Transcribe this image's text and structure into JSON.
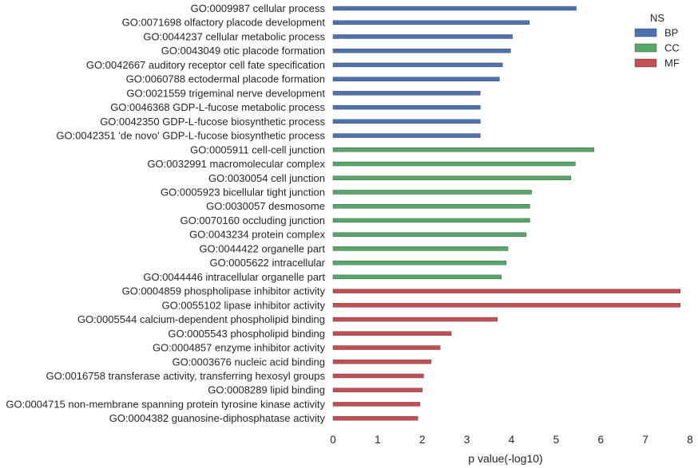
{
  "chart_data": {
    "type": "bar",
    "orientation": "horizontal",
    "xlabel": "p value(-log10)",
    "ylabel": "",
    "xlim": [
      0,
      8
    ],
    "xticks": [
      "0",
      "1",
      "2",
      "3",
      "4",
      "5",
      "6",
      "7",
      "8"
    ],
    "grid": false,
    "legend": {
      "title": "NS",
      "placement": "top-right",
      "entries": [
        {
          "name": "BP",
          "color": "#4c72b0"
        },
        {
          "name": "CC",
          "color": "#55a868"
        },
        {
          "name": "MF",
          "color": "#c44e52"
        }
      ]
    },
    "bars": [
      {
        "label": "GO:0009987 cellular process",
        "value": 5.45,
        "ns": "BP"
      },
      {
        "label": "GO:0071698 olfactory placode development",
        "value": 4.4,
        "ns": "BP"
      },
      {
        "label": "GO:0044237 cellular metabolic process",
        "value": 4.02,
        "ns": "BP"
      },
      {
        "label": "GO:0043049 otic placode formation",
        "value": 3.98,
        "ns": "BP"
      },
      {
        "label": "GO:0042667 auditory receptor cell fate specification",
        "value": 3.8,
        "ns": "BP"
      },
      {
        "label": "GO:0060788 ectodermal placode formation",
        "value": 3.73,
        "ns": "BP"
      },
      {
        "label": "GO:0021559 trigeminal nerve development",
        "value": 3.3,
        "ns": "BP"
      },
      {
        "label": "GO:0046368 GDP-L-fucose metabolic process",
        "value": 3.3,
        "ns": "BP"
      },
      {
        "label": "GO:0042350 GDP-L-fucose biosynthetic process",
        "value": 3.3,
        "ns": "BP"
      },
      {
        "label": "GO:0042351 'de novo' GDP-L-fucose biosynthetic process",
        "value": 3.3,
        "ns": "BP"
      },
      {
        "label": "GO:0005911 cell-cell junction",
        "value": 5.85,
        "ns": "CC"
      },
      {
        "label": "GO:0032991 macromolecular complex",
        "value": 5.43,
        "ns": "CC"
      },
      {
        "label": "GO:0030054 cell junction",
        "value": 5.33,
        "ns": "CC"
      },
      {
        "label": "GO:0005923 bicellular tight junction",
        "value": 4.45,
        "ns": "CC"
      },
      {
        "label": "GO:0030057 desmosome",
        "value": 4.41,
        "ns": "CC"
      },
      {
        "label": "GO:0070160 occluding junction",
        "value": 4.41,
        "ns": "CC"
      },
      {
        "label": "GO:0043234 protein complex",
        "value": 4.33,
        "ns": "CC"
      },
      {
        "label": "GO:0044422 organelle part",
        "value": 3.92,
        "ns": "CC"
      },
      {
        "label": "GO:0005622 intracellular",
        "value": 3.88,
        "ns": "CC"
      },
      {
        "label": "GO:0044446 intracellular organelle part",
        "value": 3.77,
        "ns": "CC"
      },
      {
        "label": "GO:0004859 phospholipase inhibitor activity",
        "value": 7.78,
        "ns": "MF"
      },
      {
        "label": "GO:0055102 lipase inhibitor activity",
        "value": 7.78,
        "ns": "MF"
      },
      {
        "label": "GO:0005544 calcium-dependent phospholipid binding",
        "value": 3.68,
        "ns": "MF"
      },
      {
        "label": "GO:0005543 phospholipid binding",
        "value": 2.65,
        "ns": "MF"
      },
      {
        "label": "GO:0004857 enzyme inhibitor activity",
        "value": 2.4,
        "ns": "MF"
      },
      {
        "label": "GO:0003676 nucleic acid binding",
        "value": 2.2,
        "ns": "MF"
      },
      {
        "label": "GO:0016758 transferase activity, transferring hexosyl groups",
        "value": 2.03,
        "ns": "MF"
      },
      {
        "label": "GO:0008289 lipid binding",
        "value": 2.0,
        "ns": "MF"
      },
      {
        "label": "GO:0004715 non-membrane spanning protein tyrosine kinase activity",
        "value": 1.95,
        "ns": "MF"
      },
      {
        "label": "GO:0004382 guanosine-diphosphatase activity",
        "value": 1.9,
        "ns": "MF"
      }
    ]
  }
}
